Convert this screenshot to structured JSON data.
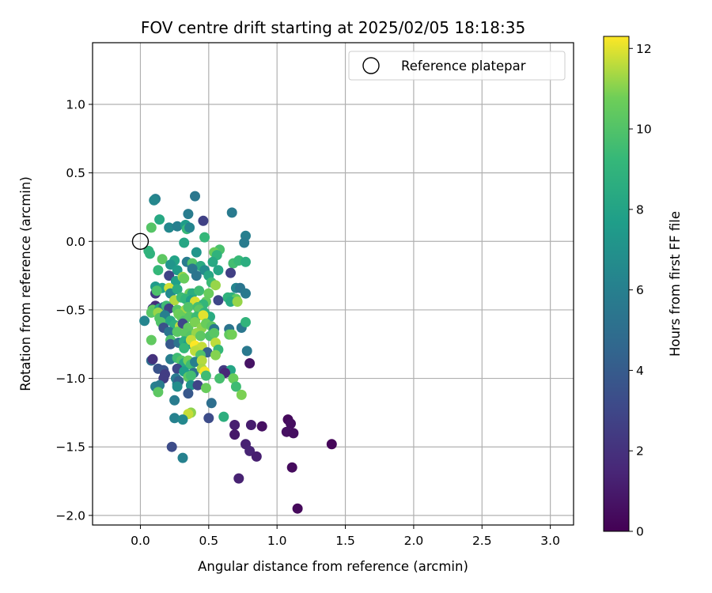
{
  "chart_data": {
    "type": "scatter",
    "title": "FOV centre drift starting at 2025/02/05 18:18:35",
    "xlabel": "Angular distance from reference (arcmin)",
    "ylabel": "Rotation from reference (arcmin)",
    "xlim": [
      -0.35,
      3.17
    ],
    "ylim": [
      -2.07,
      1.45
    ],
    "x_ticks": [
      0.0,
      0.5,
      1.0,
      1.5,
      2.0,
      2.5,
      3.0
    ],
    "x_tick_labels": [
      "0.0",
      "0.5",
      "1.0",
      "1.5",
      "2.0",
      "2.5",
      "3.0"
    ],
    "y_ticks": [
      1.0,
      0.5,
      0.0,
      -0.5,
      -1.0,
      -1.5,
      -2.0
    ],
    "y_tick_labels": [
      "1.0",
      "0.5",
      "0.0",
      "−0.5",
      "−1.0",
      "−1.5",
      "−2.0"
    ],
    "grid": true,
    "legend": {
      "location": "top-right",
      "entries": [
        {
          "label": "Reference platepar",
          "marker": "open-circle"
        }
      ]
    },
    "reference_point": {
      "x": 0.0,
      "y": 0.0
    },
    "colorbar": {
      "label": "Hours from first FF file",
      "colormap": "viridis",
      "range": [
        0,
        12.3
      ],
      "ticks": [
        0,
        2,
        4,
        6,
        8,
        10,
        12
      ],
      "tick_labels": [
        "0",
        "2",
        "4",
        "6",
        "8",
        "10",
        "12"
      ]
    },
    "points": [
      [
        0.4,
        0.33,
        5.5
      ],
      [
        0.11,
        0.31,
        5.9
      ],
      [
        0.1,
        0.3,
        6.4
      ],
      [
        0.67,
        0.21,
        5.7
      ],
      [
        0.35,
        0.2,
        5.8
      ],
      [
        0.46,
        0.15,
        2.7
      ],
      [
        0.77,
        0.04,
        6.0
      ],
      [
        0.76,
        -0.01,
        5.8
      ],
      [
        0.14,
        0.16,
        8.3
      ],
      [
        0.08,
        0.1,
        10.1
      ],
      [
        0.21,
        0.1,
        6.5
      ],
      [
        0.27,
        0.11,
        6.0
      ],
      [
        0.33,
        0.12,
        7.6
      ],
      [
        0.34,
        0.09,
        9.3
      ],
      [
        0.36,
        0.1,
        6.3
      ],
      [
        0.47,
        0.03,
        9.2
      ],
      [
        0.32,
        -0.01,
        8.2
      ],
      [
        0.58,
        -0.06,
        9.8
      ],
      [
        0.54,
        -0.08,
        10.6
      ],
      [
        0.56,
        -0.1,
        8.9
      ],
      [
        0.41,
        -0.08,
        7.2
      ],
      [
        0.06,
        -0.07,
        9.0
      ],
      [
        0.07,
        -0.09,
        8.9
      ],
      [
        0.34,
        -0.15,
        5.8
      ],
      [
        0.25,
        -0.14,
        8.0
      ],
      [
        0.38,
        -0.16,
        10.0
      ],
      [
        0.44,
        -0.18,
        8.5
      ],
      [
        0.53,
        -0.15,
        8.3
      ],
      [
        0.68,
        -0.16,
        9.6
      ],
      [
        0.72,
        -0.14,
        9.3
      ],
      [
        0.77,
        -0.15,
        8.6
      ],
      [
        0.16,
        -0.13,
        10.3
      ],
      [
        0.22,
        -0.17,
        7.2
      ],
      [
        0.27,
        -0.21,
        7.6
      ],
      [
        0.13,
        -0.21,
        9.2
      ],
      [
        0.38,
        -0.2,
        5.5
      ],
      [
        0.47,
        -0.21,
        6.7
      ],
      [
        0.41,
        -0.25,
        5.4
      ],
      [
        0.57,
        -0.21,
        8.1
      ],
      [
        0.21,
        -0.25,
        2.8
      ],
      [
        0.26,
        -0.29,
        7.8
      ],
      [
        0.31,
        -0.26,
        11.2
      ],
      [
        0.32,
        -0.27,
        10.6
      ],
      [
        0.5,
        -0.25,
        8.2
      ],
      [
        0.66,
        -0.23,
        2.6
      ],
      [
        0.7,
        -0.34,
        6.3
      ],
      [
        0.73,
        -0.34,
        5.4
      ],
      [
        0.52,
        -0.3,
        9.4
      ],
      [
        0.55,
        -0.32,
        11.2
      ],
      [
        0.11,
        -0.33,
        7.5
      ],
      [
        0.11,
        -0.38,
        2.3
      ],
      [
        0.16,
        -0.34,
        8.1
      ],
      [
        0.12,
        -0.36,
        9.9
      ],
      [
        0.21,
        -0.34,
        11.8
      ],
      [
        0.22,
        -0.38,
        6.6
      ],
      [
        0.27,
        -0.35,
        8.5
      ],
      [
        0.36,
        -0.38,
        10.7
      ],
      [
        0.38,
        -0.38,
        8.6
      ],
      [
        0.43,
        -0.36,
        9.5
      ],
      [
        0.5,
        -0.38,
        10.6
      ],
      [
        0.57,
        -0.43,
        3.0
      ],
      [
        0.64,
        -0.41,
        8.9
      ],
      [
        0.67,
        -0.41,
        8.8
      ],
      [
        0.7,
        -0.42,
        10.3
      ],
      [
        0.77,
        -0.38,
        5.6
      ],
      [
        0.66,
        -0.44,
        8.4
      ],
      [
        0.71,
        -0.44,
        11.2
      ],
      [
        0.25,
        -0.43,
        11.5
      ],
      [
        0.3,
        -0.41,
        9.5
      ],
      [
        0.33,
        -0.42,
        9.1
      ],
      [
        0.37,
        -0.43,
        7.8
      ],
      [
        0.4,
        -0.44,
        11.9
      ],
      [
        0.48,
        -0.44,
        10.5
      ],
      [
        0.46,
        -0.46,
        9.1
      ],
      [
        0.11,
        -0.47,
        1.8
      ],
      [
        0.09,
        -0.49,
        2.1
      ],
      [
        0.09,
        -0.5,
        10.5
      ],
      [
        0.14,
        -0.49,
        8.3
      ],
      [
        0.17,
        -0.48,
        5.0
      ],
      [
        0.19,
        -0.47,
        9.5
      ],
      [
        0.21,
        -0.49,
        2.8
      ],
      [
        0.27,
        -0.5,
        10.1
      ],
      [
        0.33,
        -0.5,
        11.3
      ],
      [
        0.35,
        -0.48,
        10.0
      ],
      [
        0.42,
        -0.48,
        9.7
      ],
      [
        0.43,
        -0.5,
        10.3
      ],
      [
        0.47,
        -0.52,
        9.0
      ],
      [
        0.51,
        -0.55,
        8.5
      ],
      [
        0.08,
        -0.52,
        10.2
      ],
      [
        0.13,
        -0.52,
        11.2
      ],
      [
        0.14,
        -0.56,
        10.0
      ],
      [
        0.18,
        -0.54,
        6.0
      ],
      [
        0.28,
        -0.53,
        10.7
      ],
      [
        0.3,
        -0.55,
        10.6
      ],
      [
        0.32,
        -0.58,
        10.0
      ],
      [
        0.36,
        -0.55,
        10.2
      ],
      [
        0.41,
        -0.55,
        9.4
      ],
      [
        0.46,
        -0.54,
        12.0
      ],
      [
        0.03,
        -0.58,
        6.3
      ],
      [
        0.15,
        -0.59,
        10.0
      ],
      [
        0.22,
        -0.58,
        8.3
      ],
      [
        0.25,
        -0.61,
        8.8
      ],
      [
        0.29,
        -0.62,
        11.6
      ],
      [
        0.31,
        -0.6,
        3.0
      ],
      [
        0.35,
        -0.63,
        10.4
      ],
      [
        0.4,
        -0.59,
        10.9
      ],
      [
        0.45,
        -0.63,
        11.1
      ],
      [
        0.48,
        -0.6,
        10.6
      ],
      [
        0.52,
        -0.62,
        10.3
      ],
      [
        0.54,
        -0.64,
        5.5
      ],
      [
        0.65,
        -0.64,
        5.3
      ],
      [
        0.74,
        -0.63,
        5.5
      ],
      [
        0.77,
        -0.59,
        9.0
      ],
      [
        0.17,
        -0.63,
        3.5
      ],
      [
        0.21,
        -0.66,
        5.4
      ],
      [
        0.27,
        -0.66,
        10.2
      ],
      [
        0.33,
        -0.67,
        10.3
      ],
      [
        0.37,
        -0.69,
        10.1
      ],
      [
        0.41,
        -0.67,
        11.2
      ],
      [
        0.44,
        -0.69,
        10.3
      ],
      [
        0.51,
        -0.69,
        9.9
      ],
      [
        0.54,
        -0.67,
        10.2
      ],
      [
        0.65,
        -0.68,
        10.4
      ],
      [
        0.67,
        -0.68,
        10.8
      ],
      [
        0.08,
        -0.72,
        10.4
      ],
      [
        0.22,
        -0.72,
        9.9
      ],
      [
        0.22,
        -0.75,
        3.8
      ],
      [
        0.28,
        -0.74,
        5.3
      ],
      [
        0.32,
        -0.73,
        8.6
      ],
      [
        0.35,
        -0.75,
        7.8
      ],
      [
        0.37,
        -0.72,
        11.7
      ],
      [
        0.4,
        -0.76,
        12.3
      ],
      [
        0.42,
        -0.79,
        11.8
      ],
      [
        0.45,
        -0.77,
        11.7
      ],
      [
        0.55,
        -0.74,
        11.6
      ],
      [
        0.57,
        -0.79,
        9.2
      ],
      [
        0.78,
        -0.8,
        5.6
      ],
      [
        0.32,
        -0.78,
        9.2
      ],
      [
        0.4,
        -0.8,
        11.6
      ],
      [
        0.49,
        -0.81,
        4.3
      ],
      [
        0.55,
        -0.83,
        11.0
      ],
      [
        0.44,
        -0.83,
        9.9
      ],
      [
        0.08,
        -0.87,
        4.9
      ],
      [
        0.09,
        -0.86,
        2.0
      ],
      [
        0.22,
        -0.86,
        5.9
      ],
      [
        0.27,
        -0.85,
        9.5
      ],
      [
        0.3,
        -0.87,
        10.0
      ],
      [
        0.32,
        -0.89,
        8.3
      ],
      [
        0.35,
        -0.87,
        10.8
      ],
      [
        0.37,
        -0.9,
        9.5
      ],
      [
        0.4,
        -0.88,
        6.0
      ],
      [
        0.45,
        -0.87,
        11.5
      ],
      [
        0.8,
        -0.89,
        0.7
      ],
      [
        0.13,
        -0.93,
        3.5
      ],
      [
        0.17,
        -0.94,
        3.6
      ],
      [
        0.18,
        -0.97,
        2.5
      ],
      [
        0.27,
        -0.93,
        3.0
      ],
      [
        0.32,
        -0.95,
        7.7
      ],
      [
        0.39,
        -0.96,
        5.2
      ],
      [
        0.45,
        -0.93,
        11.4
      ],
      [
        0.47,
        -0.95,
        12.2
      ],
      [
        0.61,
        -0.94,
        2.4
      ],
      [
        0.66,
        -0.94,
        8.1
      ],
      [
        0.62,
        -0.96,
        1.5
      ],
      [
        0.17,
        -1.0,
        2.5
      ],
      [
        0.26,
        -1.0,
        5.8
      ],
      [
        0.35,
        -0.99,
        10.3
      ],
      [
        0.37,
        -0.98,
        9.6
      ],
      [
        0.48,
        -0.98,
        9.5
      ],
      [
        0.58,
        -1.0,
        9.7
      ],
      [
        0.68,
        -1.0,
        10.6
      ],
      [
        0.27,
        -1.04,
        6.3
      ],
      [
        0.28,
        -1.02,
        4.3
      ],
      [
        0.11,
        -1.06,
        6.1
      ],
      [
        0.14,
        -1.05,
        5.8
      ],
      [
        0.27,
        -1.06,
        6.8
      ],
      [
        0.37,
        -1.05,
        7.1
      ],
      [
        0.42,
        -1.05,
        2.8
      ],
      [
        0.48,
        -1.07,
        10.6
      ],
      [
        0.7,
        -1.06,
        9.5
      ],
      [
        0.35,
        -1.11,
        3.8
      ],
      [
        0.13,
        -1.1,
        10.3
      ],
      [
        0.74,
        -1.12,
        10.9
      ],
      [
        0.25,
        -1.16,
        5.8
      ],
      [
        0.52,
        -1.18,
        5.0
      ],
      [
        0.37,
        -1.25,
        11.1
      ],
      [
        0.35,
        -1.26,
        11.7
      ],
      [
        0.25,
        -1.29,
        6.1
      ],
      [
        0.31,
        -1.3,
        6.5
      ],
      [
        0.5,
        -1.29,
        3.2
      ],
      [
        0.61,
        -1.28,
        8.7
      ],
      [
        0.69,
        -1.34,
        1.2
      ],
      [
        0.69,
        -1.41,
        0.9
      ],
      [
        0.81,
        -1.34,
        1.1
      ],
      [
        0.89,
        -1.35,
        0.6
      ],
      [
        1.08,
        -1.3,
        0.3
      ],
      [
        1.1,
        -1.33,
        0.5
      ],
      [
        1.07,
        -1.39,
        0.6
      ],
      [
        1.12,
        -1.4,
        0.5
      ],
      [
        0.23,
        -1.5,
        3.2
      ],
      [
        0.77,
        -1.48,
        1.3
      ],
      [
        0.8,
        -1.53,
        1.4
      ],
      [
        0.85,
        -1.57,
        1.2
      ],
      [
        0.31,
        -1.58,
        6.1
      ],
      [
        1.4,
        -1.48,
        0.2
      ],
      [
        1.11,
        -1.65,
        0.4
      ],
      [
        0.72,
        -1.73,
        1.3
      ],
      [
        1.15,
        -1.95,
        0.3
      ]
    ]
  }
}
